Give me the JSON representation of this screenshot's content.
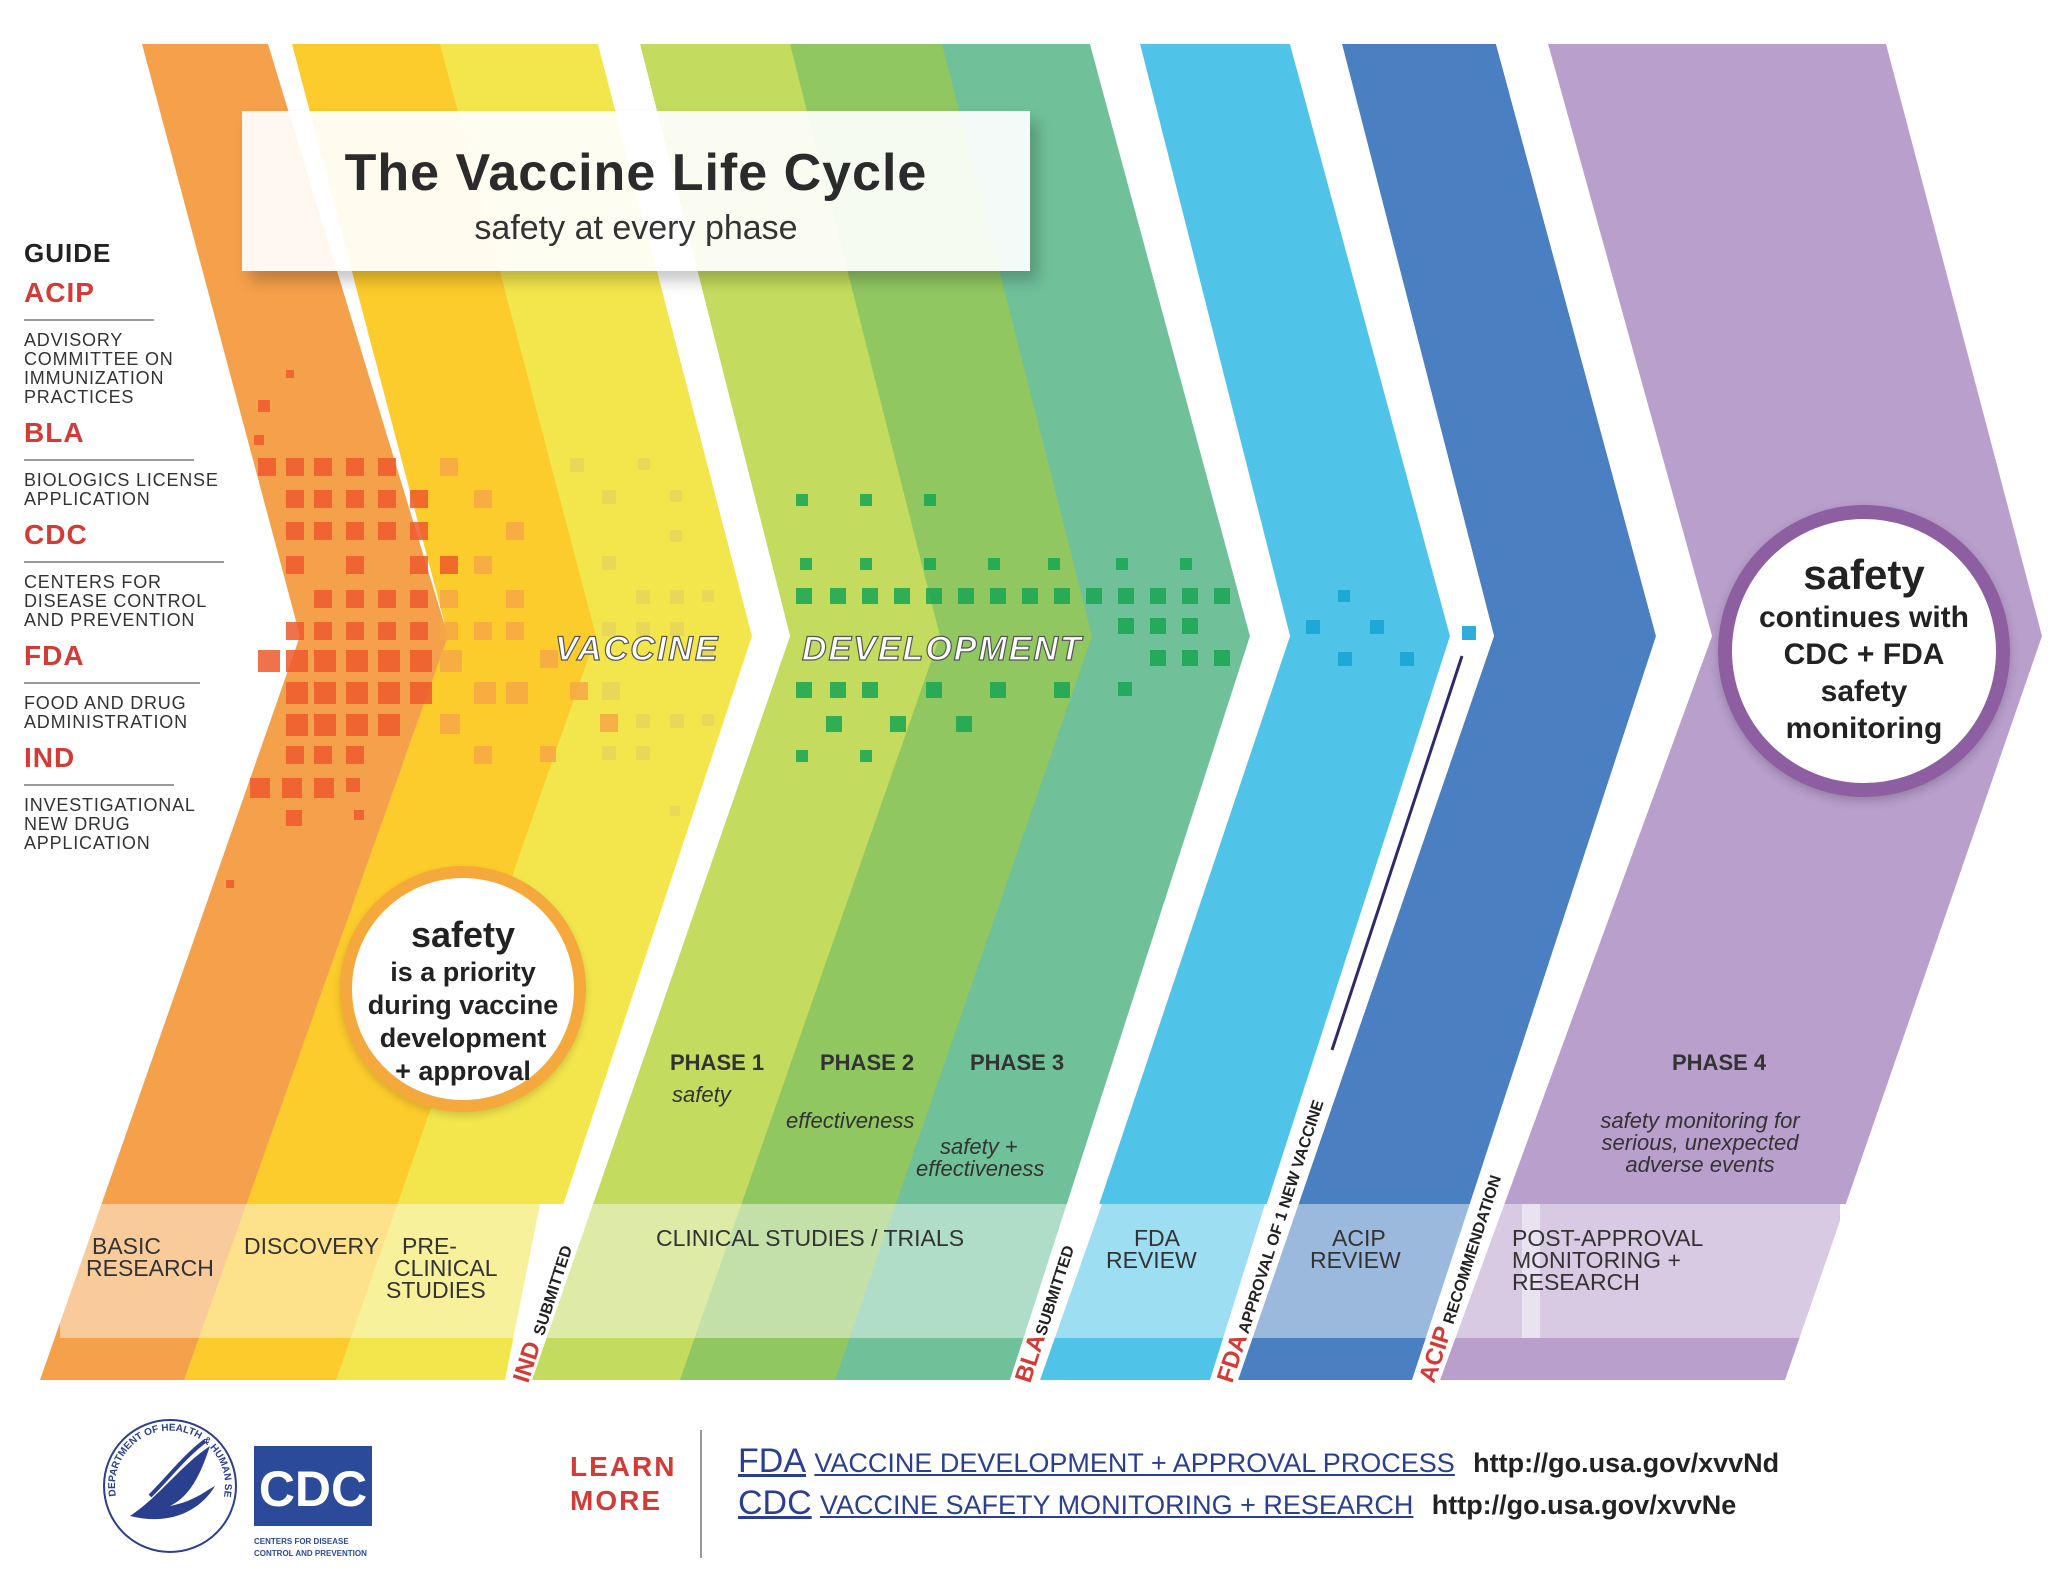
{
  "title": {
    "main": "The Vaccine Life Cycle",
    "subtitle": "safety at every phase"
  },
  "guide": {
    "title": "GUIDE",
    "items": [
      {
        "abbr": "ACIP",
        "full": "ADVISORY COMMITTEE ON IMMUNIZATION PRACTICES"
      },
      {
        "abbr": "BLA",
        "full": "BIOLOGICS LICENSE APPLICATION"
      },
      {
        "abbr": "CDC",
        "full": "CENTERS FOR DISEASE CONTROL AND PREVENTION"
      },
      {
        "abbr": "FDA",
        "full": "FOOD AND DRUG ADMINISTRATION"
      },
      {
        "abbr": "IND",
        "full": "INVESTIGATIONAL NEW DRUG APPLICATION"
      }
    ]
  },
  "banner": {
    "word1": "VACCINE",
    "word2": "DEVELOPMENT"
  },
  "stages": {
    "basic_research": [
      "BASIC",
      "RESEARCH"
    ],
    "discovery": "DISCOVERY",
    "preclinical": [
      "PRE-",
      "CLINICAL",
      "STUDIES"
    ],
    "clinical": "CLINICAL STUDIES / TRIALS",
    "fda_review": [
      "FDA",
      "REVIEW"
    ],
    "acip_review": [
      "ACIP",
      "REVIEW"
    ],
    "post_approval": [
      "POST-APPROVAL",
      "MONITORING +",
      "RESEARCH"
    ]
  },
  "phases": [
    {
      "label": "PHASE 1",
      "desc": [
        "safety"
      ]
    },
    {
      "label": "PHASE 2",
      "desc": [
        "effectiveness"
      ]
    },
    {
      "label": "PHASE 3",
      "desc": [
        "safety +",
        "effectiveness"
      ]
    },
    {
      "label": "PHASE 4",
      "desc": [
        "safety monitoring for",
        "serious, unexpected",
        "adverse events"
      ]
    }
  ],
  "milestones": {
    "ind": {
      "abbr": "IND",
      "text": "SUBMITTED"
    },
    "bla": {
      "abbr": "BLA",
      "text": "SUBMITTED"
    },
    "fda": {
      "abbr": "FDA",
      "text": "APPROVAL OF 1 NEW VACCINE"
    },
    "acip": {
      "abbr": "ACIP",
      "text": "RECOMMENDATION"
    }
  },
  "bubble_left": {
    "headline": "safety",
    "lines": [
      "is a priority",
      "during vaccine",
      "development",
      "+ approval"
    ]
  },
  "bubble_right": {
    "headline": "safety",
    "lines": [
      "continues with",
      "CDC + FDA",
      "safety",
      "monitoring"
    ]
  },
  "footer": {
    "learn_more": [
      "LEARN",
      "MORE"
    ],
    "links": [
      {
        "agency": "FDA",
        "desc": "VACCINE DEVELOPMENT + APPROVAL PROCESS",
        "url": "http://go.usa.gov/xvvNd"
      },
      {
        "agency": "CDC",
        "desc": "VACCINE SAFETY MONITORING + RESEARCH",
        "url": "http://go.usa.gov/xvvNe"
      }
    ],
    "hhs_seal_text": "DEPARTMENT OF HEALTH & HUMAN SERVICES · USA",
    "cdc_logo": {
      "letters": "CDC",
      "sub": [
        "CENTERS FOR DISEASE",
        "CONTROL AND PREVENTION"
      ]
    }
  },
  "colors": {
    "band1": "#f5a04a",
    "band2": "#fccb2c",
    "band3": "#f3e64c",
    "band4": "#c3db5e",
    "band5": "#90c761",
    "band6": "#70c19a",
    "band7": "#4fc4e8",
    "band8": "#4a7fc1",
    "band9": "#b89fcc",
    "accent": "#d33b36",
    "link": "#2b3f8f"
  }
}
